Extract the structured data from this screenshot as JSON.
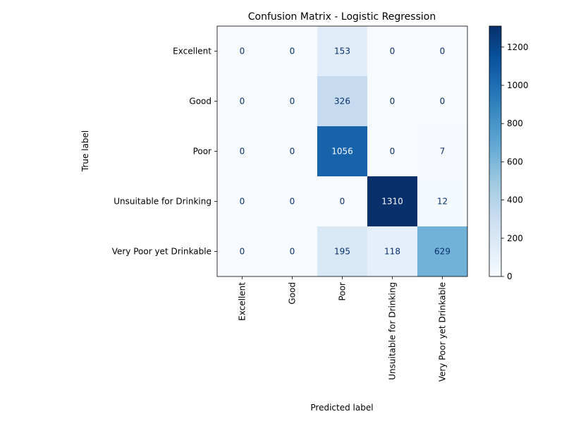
{
  "chart_data": {
    "type": "heatmap",
    "title": "Confusion Matrix - Logistic Regression",
    "xlabel": "Predicted label",
    "ylabel": "True label",
    "x_categories": [
      "Excellent",
      "Good",
      "Poor",
      "Unsuitable for Drinking",
      "Very Poor yet Drinkable"
    ],
    "y_categories": [
      "Excellent",
      "Good",
      "Poor",
      "Unsuitable for Drinking",
      "Very Poor yet Drinkable"
    ],
    "matrix": [
      [
        0,
        0,
        153,
        0,
        0
      ],
      [
        0,
        0,
        326,
        0,
        0
      ],
      [
        0,
        0,
        1056,
        0,
        7
      ],
      [
        0,
        0,
        0,
        1310,
        12
      ],
      [
        0,
        0,
        195,
        118,
        629
      ]
    ],
    "colormap": "Blues",
    "colorbar": {
      "range": [
        0,
        1310
      ],
      "ticks": [
        0,
        200,
        400,
        600,
        800,
        1000,
        1200
      ]
    },
    "colors": {
      "low": "#f7fbff",
      "high": "#08306b",
      "text_dark": "#08306b",
      "text_light": "#f7fbff"
    },
    "grid": false
  }
}
